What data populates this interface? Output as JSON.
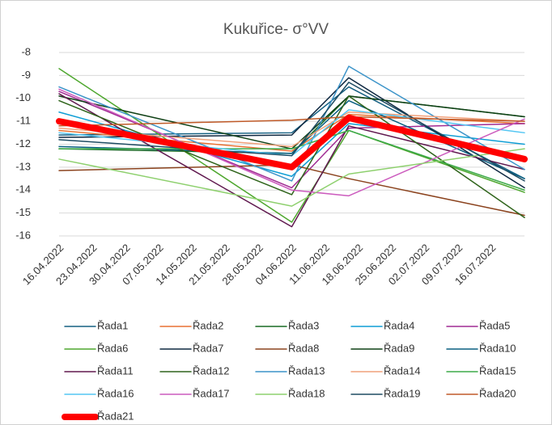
{
  "chart_data": {
    "type": "line",
    "title": "Kukuřice- σ°VV",
    "x": [
      "16.04.2022",
      "04.06.2022",
      "16.06.2022",
      "23.07.2022"
    ],
    "xlim": [
      "16.04.2022",
      "23.07.2022"
    ],
    "xticks": [
      "16.04.2022",
      "23.04.2022",
      "30.04.2022",
      "07.05.2022",
      "14.05.2022",
      "21.05.2022",
      "28.05.2022",
      "04.06.2022",
      "11.06.2022",
      "18.06.2022",
      "25.06.2022",
      "02.07.2022",
      "09.07.2022",
      "16.07.2022"
    ],
    "ylim": [
      -16,
      -8
    ],
    "yticks": [
      -16,
      -15,
      -14,
      -13,
      -12,
      -11,
      -10,
      -9,
      -8
    ],
    "grid": true,
    "series": [
      {
        "name": "Řada1",
        "color": "#156082",
        "values": [
          -11.6,
          -11.5,
          -9.5,
          -13.5
        ]
      },
      {
        "name": "Řada2",
        "color": "#E97132",
        "values": [
          -11.4,
          -12.3,
          -10.7,
          -11.1
        ]
      },
      {
        "name": "Řada3",
        "color": "#196B24",
        "values": [
          -12.2,
          -12.4,
          -9.9,
          -10.8
        ]
      },
      {
        "name": "Řada4",
        "color": "#0F9ED5",
        "values": [
          -10.6,
          -13.4,
          -11.1,
          -12
        ]
      },
      {
        "name": "Řada5",
        "color": "#A02B93",
        "values": [
          -9.7,
          -13.9,
          -11.3,
          -11.1
        ]
      },
      {
        "name": "Řada6",
        "color": "#4EA72E",
        "values": [
          -8.7,
          -15.4,
          -11.4,
          -14.1
        ]
      },
      {
        "name": "Řada7",
        "color": "#0E2841",
        "values": [
          -11.7,
          -11.6,
          -9.1,
          -13.9
        ]
      },
      {
        "name": "Řada8",
        "color": "#8B431E",
        "values": [
          -13.15,
          -12.9,
          -13.5,
          -15.1
        ]
      },
      {
        "name": "Řada9",
        "color": "#0F4015",
        "values": [
          -9.9,
          -12.2,
          -9.9,
          -10.8
        ]
      },
      {
        "name": "Řada10",
        "color": "#095F80",
        "values": [
          -12.1,
          -12.4,
          -10.1,
          -13.5
        ]
      },
      {
        "name": "Řada11",
        "color": "#60194F",
        "values": [
          -9.8,
          -15.6,
          -11.2,
          -13.1
        ]
      },
      {
        "name": "Řada12",
        "color": "#2F641B",
        "values": [
          -10.1,
          -14.2,
          -9.9,
          -15.2
        ]
      },
      {
        "name": "Řada13",
        "color": "#3C94C9",
        "values": [
          -9.5,
          -13.6,
          -8.6,
          -13.1
        ]
      },
      {
        "name": "Řada14",
        "color": "#F1A07A",
        "values": [
          -11.3,
          -12.1,
          -10.6,
          -11
        ]
      },
      {
        "name": "Řada15",
        "color": "#3DAA49",
        "values": [
          -12.2,
          -12.2,
          -11.4,
          -14
        ]
      },
      {
        "name": "Řada16",
        "color": "#53C6F3",
        "values": [
          -11.5,
          -12.5,
          -10.5,
          -11.5
        ]
      },
      {
        "name": "Řada17",
        "color": "#CC5CBE",
        "values": [
          -9.6,
          -14,
          -14.25,
          -10.9
        ]
      },
      {
        "name": "Řada18",
        "color": "#8ED06E",
        "values": [
          -12.65,
          -14.7,
          -13.3,
          -12.2
        ]
      },
      {
        "name": "Řada19",
        "color": "#1D4B62",
        "values": [
          -11.8,
          -12.5,
          -9.3,
          -13.6
        ]
      },
      {
        "name": "Řada20",
        "color": "#C05A28",
        "values": [
          -11.2,
          -10.95,
          -10.8,
          -11
        ]
      },
      {
        "name": "Řada21",
        "color": "#FF0000",
        "width": 8,
        "values": [
          -11,
          -13,
          -10.85,
          -12.65
        ]
      }
    ]
  }
}
